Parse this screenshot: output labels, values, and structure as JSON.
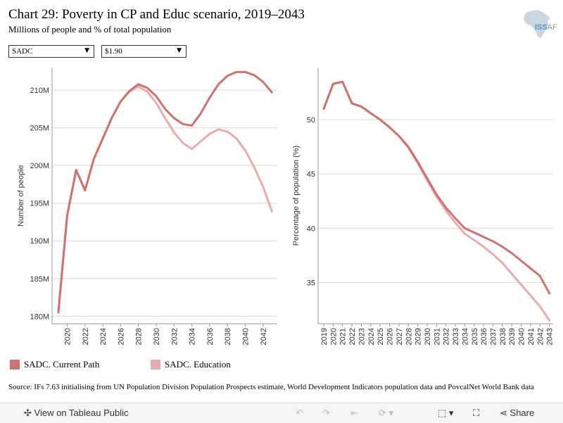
{
  "header": {
    "title": "Chart 29: Poverty in CP and Educ scenario, 2019–2043",
    "subtitle": "Millions of people and % of total population"
  },
  "logo": {
    "text": "ISS",
    "suffix": "AF"
  },
  "filters": {
    "region": "SADC",
    "threshold": "$1.90"
  },
  "colors": {
    "current_path": "#cf7171",
    "education": "#e8acac"
  },
  "chart_data": [
    {
      "type": "line",
      "title": "",
      "xlabel": "",
      "ylabel": "Number of people",
      "ylim": [
        179,
        213
      ],
      "xlim": [
        2018.3,
        2043.6
      ],
      "yticks": [
        180,
        185,
        190,
        195,
        200,
        205,
        210
      ],
      "ytick_labels": [
        "180M",
        "185M",
        "190M",
        "195M",
        "200M",
        "205M",
        "210M"
      ],
      "xticks": [
        2020,
        2022,
        2024,
        2026,
        2028,
        2030,
        2032,
        2034,
        2036,
        2038,
        2040,
        2042
      ],
      "grid": true,
      "x": [
        2019,
        2020,
        2021,
        2022,
        2023,
        2024,
        2025,
        2026,
        2027,
        2028,
        2029,
        2030,
        2031,
        2032,
        2033,
        2034,
        2035,
        2036,
        2037,
        2038,
        2039,
        2040,
        2041,
        2042,
        2043
      ],
      "series": [
        {
          "name": "SADC. Current Path",
          "values": [
            180.5,
            193.4,
            199.4,
            196.7,
            200.9,
            203.6,
            206.3,
            208.5,
            209.9,
            210.8,
            210.3,
            209.2,
            207.5,
            206.3,
            205.5,
            205.3,
            206.9,
            209.0,
            210.8,
            211.9,
            212.4,
            212.4,
            212.0,
            211.1,
            209.7
          ]
        },
        {
          "name": "SADC. Education",
          "values": [
            180.5,
            193.4,
            199.4,
            196.7,
            200.9,
            203.6,
            206.3,
            208.5,
            209.8,
            210.5,
            209.8,
            208.3,
            206.3,
            204.4,
            203.0,
            202.2,
            203.2,
            204.2,
            204.8,
            204.5,
            203.6,
            202.0,
            199.8,
            197.2,
            193.9
          ]
        }
      ]
    },
    {
      "type": "line",
      "title": "",
      "xlabel": "",
      "ylabel": "Percentage of population (%)",
      "ylim": [
        31.2,
        54.8
      ],
      "xlim": [
        2018.4,
        2043.4
      ],
      "yticks": [
        35,
        40,
        45,
        50
      ],
      "ytick_labels": [
        "35",
        "40",
        "45",
        "50"
      ],
      "xticks": [
        2019,
        2020,
        2021,
        2022,
        2023,
        2024,
        2025,
        2026,
        2027,
        2028,
        2029,
        2030,
        2031,
        2032,
        2033,
        2034,
        2035,
        2036,
        2037,
        2038,
        2039,
        2040,
        2041,
        2042,
        2043
      ],
      "grid": true,
      "x": [
        2019,
        2020,
        2021,
        2022,
        2023,
        2024,
        2025,
        2026,
        2027,
        2028,
        2029,
        2030,
        2031,
        2032,
        2033,
        2034,
        2035,
        2036,
        2037,
        2038,
        2039,
        2040,
        2041,
        2042,
        2043
      ],
      "series": [
        {
          "name": "SADC. Current Path",
          "values": [
            51.0,
            53.3,
            53.5,
            51.5,
            51.2,
            50.6,
            50.0,
            49.3,
            48.5,
            47.5,
            46.1,
            44.6,
            43.1,
            41.9,
            40.9,
            40.0,
            39.6,
            39.2,
            38.8,
            38.3,
            37.7,
            37.0,
            36.3,
            35.6,
            34.0
          ]
        },
        {
          "name": "SADC. Education",
          "values": [
            51.0,
            53.3,
            53.5,
            51.5,
            51.2,
            50.6,
            50.0,
            49.3,
            48.5,
            47.4,
            46.0,
            44.4,
            42.9,
            41.6,
            40.5,
            39.5,
            38.9,
            38.3,
            37.6,
            36.8,
            35.8,
            34.8,
            33.8,
            32.8,
            31.5
          ]
        }
      ]
    }
  ],
  "legend": [
    {
      "label": "SADC. Current Path"
    },
    {
      "label": "SADC. Education"
    }
  ],
  "source": "Source: IFs 7.63 initialising from UN Population Division Population Prospects estimate, World Development Indicators population data and PovcalNet World Bank data",
  "toolbar": {
    "view_label": "View on Tableau Public",
    "share_label": "Share",
    "icons": [
      "tableau-icon",
      "undo-icon",
      "redo-icon",
      "revert-icon",
      "refresh-icon",
      "download-icon",
      "fullscreen-icon",
      "share-icon"
    ]
  }
}
